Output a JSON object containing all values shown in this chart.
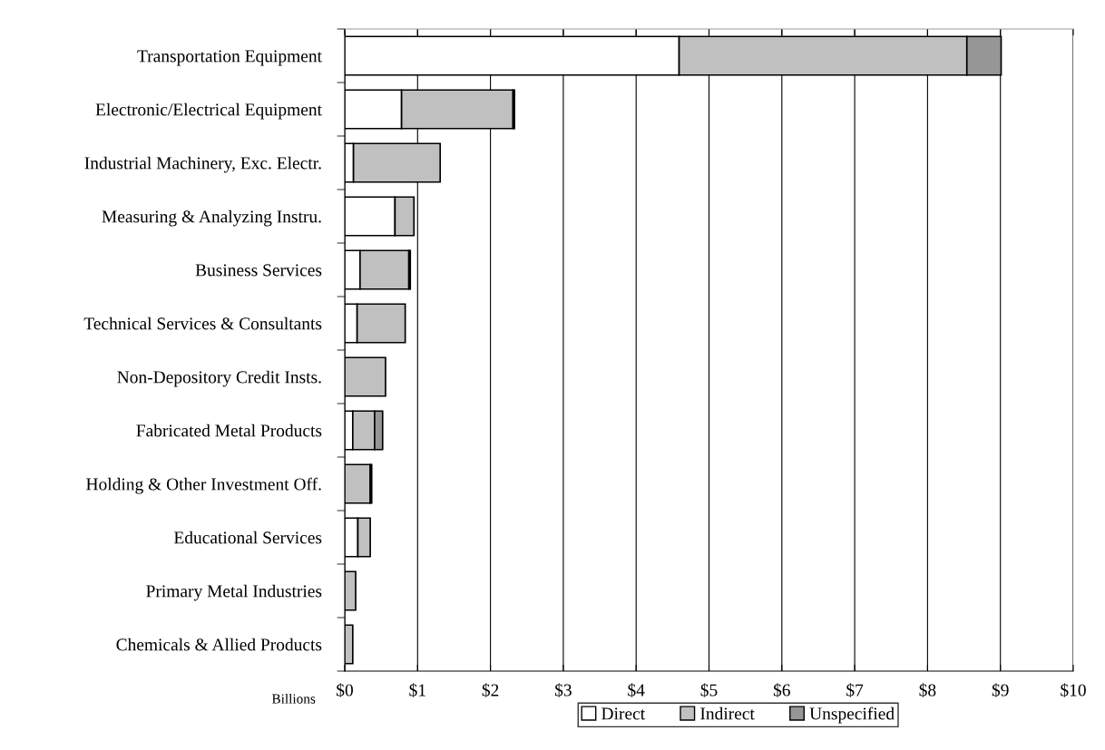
{
  "chart_data": {
    "type": "bar",
    "orientation": "horizontal",
    "stacked": true,
    "xlabel": "Billions",
    "categories": [
      "Transportation Equipment",
      "Electronic/Electrical Equipment",
      "Industrial Machinery, Exc. Electr.",
      "Measuring & Analyzing Instru.",
      "Business Services",
      "Technical Services & Consultants",
      "Non-Depository Credit Insts.",
      "Fabricated Metal Products",
      "Holding & Other Investment Off.",
      "Educational Services",
      "Primary Metal Industries",
      "Chemicals & Allied Products"
    ],
    "series": [
      {
        "name": "Direct",
        "color": "#ffffff",
        "values": [
          4.59,
          0.78,
          0.12,
          0.69,
          0.21,
          0.17,
          0,
          0.11,
          null,
          0.18,
          0,
          0
        ]
      },
      {
        "name": "Indirect",
        "color": "#c0c0c0",
        "values": [
          3.95,
          1.53,
          1.19,
          0.26,
          0.67,
          0.66,
          0.56,
          0.3,
          0.35,
          0.17,
          0.15,
          0.11
        ]
      },
      {
        "name": "Unspecified",
        "color": "#969696",
        "values": [
          0.47,
          0.02,
          0,
          0,
          0.02,
          0,
          0,
          0.11,
          0.02,
          0,
          0,
          0
        ]
      }
    ],
    "xlim": [
      0,
      10
    ],
    "xticks": [
      {
        "value": 0,
        "label": "$0"
      },
      {
        "value": 1,
        "label": "$1"
      },
      {
        "value": 2,
        "label": "$2"
      },
      {
        "value": 3,
        "label": "$3"
      },
      {
        "value": 4,
        "label": "$4"
      },
      {
        "value": 5,
        "label": "$5"
      },
      {
        "value": 6,
        "label": "$6"
      },
      {
        "value": 7,
        "label": "$7"
      },
      {
        "value": 8,
        "label": "$8"
      },
      {
        "value": 9,
        "label": "$9"
      },
      {
        "value": 10,
        "label": "$10"
      }
    ],
    "grid": "x",
    "legend": "bottom"
  }
}
